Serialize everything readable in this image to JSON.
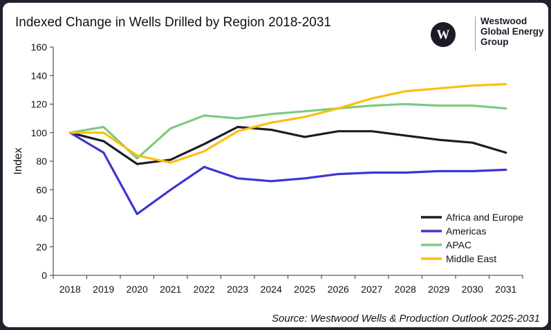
{
  "title": "Indexed Change in Wells Drilled by Region 2018-2031",
  "logo": {
    "line1": "Westwood",
    "line2": "Global Energy",
    "line3": "Group",
    "icon": "westwood-w-icon"
  },
  "source": "Source: Westwood Wells & Production Outlook 2025-2031",
  "chart_data": {
    "type": "line",
    "title": "Indexed Change in Wells Drilled by Region 2018-2031",
    "xlabel": "",
    "ylabel": "Index",
    "categories": [
      "2018",
      "2019",
      "2020",
      "2021",
      "2022",
      "2023",
      "2024",
      "2025",
      "2026",
      "2027",
      "2028",
      "2029",
      "2030",
      "2031"
    ],
    "yticks": [
      "0",
      "20",
      "40",
      "60",
      "80",
      "100",
      "120",
      "140",
      "160"
    ],
    "ylim": [
      0,
      160
    ],
    "grid": false,
    "legend_position": "bottom-right",
    "series": [
      {
        "name": "Africa and Europe",
        "color": "#1c1b26",
        "values": [
          100,
          94,
          78,
          81,
          92,
          104,
          102,
          97,
          101,
          101,
          98,
          95,
          93,
          86
        ]
      },
      {
        "name": "Americas",
        "color": "#3b35d4",
        "values": [
          100,
          86,
          43,
          60,
          76,
          68,
          66,
          68,
          71,
          72,
          72,
          73,
          73,
          74
        ]
      },
      {
        "name": "APAC",
        "color": "#7ccb80",
        "values": [
          100,
          104,
          82,
          103,
          112,
          110,
          113,
          115,
          117,
          119,
          120,
          119,
          119,
          117
        ]
      },
      {
        "name": "Middle East",
        "color": "#fbbf0a",
        "values": [
          100,
          100,
          84,
          79,
          87,
          101,
          107,
          111,
          117,
          124,
          129,
          131,
          133,
          134
        ]
      }
    ]
  }
}
